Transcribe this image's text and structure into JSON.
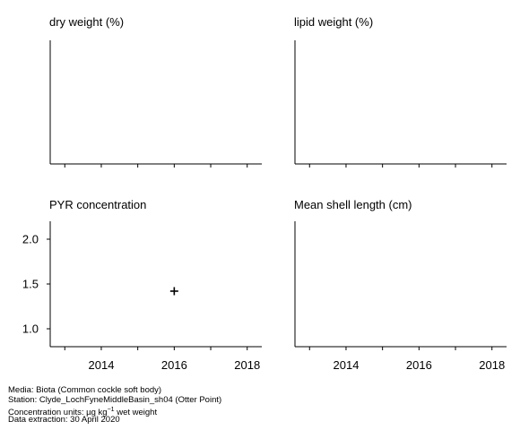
{
  "chart_data": [
    {
      "type": "scatter",
      "title": "dry weight (%)",
      "xlim": [
        2012.6,
        2018.4
      ],
      "x_ticks_major": [
        2014,
        2016,
        2018
      ],
      "x_ticks_minor": [
        2013,
        2015,
        2017
      ],
      "show_x_tick_labels": false,
      "y_axis": false,
      "series": []
    },
    {
      "type": "scatter",
      "title": "lipid weight (%)",
      "xlim": [
        2012.6,
        2018.4
      ],
      "x_ticks_major": [
        2014,
        2016,
        2018
      ],
      "x_ticks_minor": [
        2013,
        2015,
        2017
      ],
      "show_x_tick_labels": false,
      "y_axis": false,
      "series": []
    },
    {
      "type": "scatter",
      "title": "PYR concentration",
      "xlim": [
        2012.6,
        2018.4
      ],
      "ylim": [
        0.8,
        2.2
      ],
      "x_ticks_major": [
        2014,
        2016,
        2018
      ],
      "x_ticks_minor": [
        2013,
        2015,
        2017
      ],
      "x_tick_labels": [
        "2014",
        "2016",
        "2018"
      ],
      "y_ticks": [
        1.0,
        1.5,
        2.0
      ],
      "y_tick_labels": [
        "1.0",
        "1.5",
        "2.0"
      ],
      "show_x_tick_labels": true,
      "y_axis": true,
      "series": [
        {
          "marker": "plus",
          "points": [
            {
              "x": 2016,
              "y": 1.42
            }
          ]
        }
      ]
    },
    {
      "type": "scatter",
      "title": "Mean shell length (cm)",
      "xlim": [
        2012.6,
        2018.4
      ],
      "x_ticks_major": [
        2014,
        2016,
        2018
      ],
      "x_ticks_minor": [
        2013,
        2015,
        2017
      ],
      "x_tick_labels": [
        "2014",
        "2016",
        "2018"
      ],
      "show_x_tick_labels": true,
      "y_axis": false,
      "series": []
    }
  ],
  "footer": {
    "media": "Media: Biota (Common cockle soft body)",
    "station": "Station: Clyde_LochFyneMiddleBasin_sh04 (Otter Point)",
    "units_prefix": "Concentration units:  µg kg",
    "units_exp": "−1",
    "units_suffix": " wet weight",
    "extraction": "Data extraction: 30 April 2020"
  }
}
